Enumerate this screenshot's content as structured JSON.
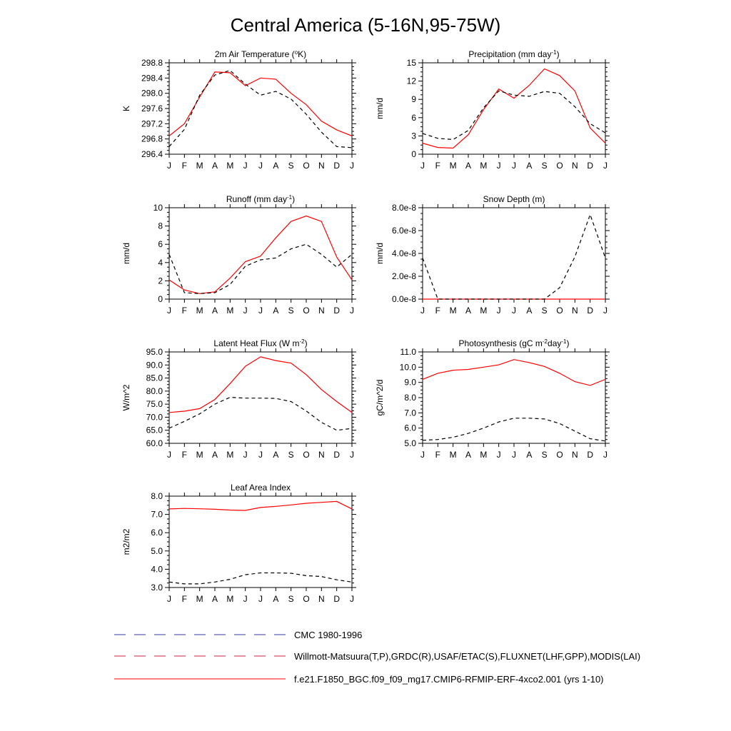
{
  "title": "Central America (5-16N,95-75W)",
  "months": [
    "J",
    "F",
    "M",
    "A",
    "M",
    "J",
    "J",
    "A",
    "S",
    "O",
    "N",
    "D",
    "J"
  ],
  "colors": {
    "model": "#ff0000",
    "obs": "#000000",
    "obs_alt": "#3a3aa8"
  },
  "legend": [
    {
      "style": "dashed",
      "color": "#3a3aa8",
      "label": "CMC 1980-1996"
    },
    {
      "style": "dashed",
      "color": "#cc2244",
      "label": "Willmott-Matsuura(T,P),GRDC(R),USAF/ETAC(S),FLUXNET(LHF,GPP),MODIS(LAI)"
    },
    {
      "style": "solid",
      "color": "#ff0000",
      "label": "f.e21.F1850_BGC.f09_f09_mg17.CMIP6-RFMIP-ERF-4xco2.001 (yrs 1-10)"
    }
  ],
  "chart_data": [
    {
      "type": "line",
      "title": "2m Air Temperature (°K)",
      "title_parts": [
        "2m Air Temperature (",
        "o",
        "K)"
      ],
      "ylabel": "K",
      "ylim": [
        296.4,
        298.8
      ],
      "yticks": [
        "296.4",
        "296.8",
        "297.2",
        "297.6",
        "298.0",
        "298.4",
        "298.8"
      ],
      "series": [
        {
          "style": "model",
          "values": [
            296.88,
            297.2,
            297.9,
            298.56,
            298.54,
            298.2,
            298.4,
            298.37,
            298.0,
            297.7,
            297.27,
            297.04,
            296.88
          ]
        },
        {
          "style": "obs",
          "values": [
            296.6,
            297.05,
            297.95,
            298.48,
            298.6,
            298.24,
            297.95,
            298.05,
            297.85,
            297.45,
            296.98,
            296.6,
            296.57
          ]
        }
      ]
    },
    {
      "type": "line",
      "title": "Precipitation (mm day-1)",
      "title_parts": [
        "Precipitation (mm day",
        "-1",
        ")"
      ],
      "ylabel": "mm/d",
      "ylim": [
        0,
        15
      ],
      "yticks": [
        "0",
        "3",
        "6",
        "9",
        "12",
        "15"
      ],
      "series": [
        {
          "style": "model",
          "values": [
            1.8,
            1.1,
            1.0,
            3.2,
            7.3,
            10.7,
            9.2,
            11.3,
            14.0,
            12.9,
            10.4,
            4.3,
            1.8
          ]
        },
        {
          "style": "obs",
          "values": [
            3.4,
            2.6,
            2.4,
            3.9,
            7.6,
            10.4,
            9.7,
            9.5,
            10.3,
            10.0,
            7.8,
            5.0,
            3.5
          ]
        }
      ]
    },
    {
      "type": "line",
      "title": "Runoff (mm day-1)",
      "title_parts": [
        "Runoff (mm day",
        "-1",
        ")"
      ],
      "ylabel": "mm/d",
      "ylim": [
        0,
        10
      ],
      "yticks": [
        "0",
        "2",
        "4",
        "6",
        "8",
        "10"
      ],
      "series": [
        {
          "style": "model",
          "values": [
            2.1,
            1.0,
            0.6,
            0.8,
            2.3,
            4.1,
            4.7,
            6.7,
            8.5,
            9.1,
            8.5,
            4.6,
            2.1
          ]
        },
        {
          "style": "obs",
          "values": [
            4.9,
            0.7,
            0.6,
            0.7,
            1.6,
            3.6,
            4.3,
            4.5,
            5.5,
            6.0,
            4.9,
            3.5,
            4.9
          ]
        }
      ]
    },
    {
      "type": "line",
      "title": "Snow Depth (m)",
      "title_parts": [
        "Snow Depth (m)"
      ],
      "ylabel": "mm/d",
      "ylim": [
        0,
        8e-08
      ],
      "yticks": [
        "0.0e-8",
        "2.0e-8",
        "4.0e-8",
        "6.0e-8",
        "8.0e-8"
      ],
      "series": [
        {
          "style": "model",
          "values": [
            0,
            0,
            0,
            0,
            0,
            0,
            0,
            0,
            0,
            0,
            0,
            0,
            0
          ]
        },
        {
          "style": "obs",
          "values": [
            3.6e-08,
            0,
            0,
            0,
            0,
            0,
            0,
            0,
            0,
            1e-08,
            3.7e-08,
            7.4e-08,
            3.6e-08
          ]
        }
      ]
    },
    {
      "type": "line",
      "title": "Latent Heat Flux (W m-2)",
      "title_parts": [
        "Latent Heat Flux (W m",
        "-2",
        ")"
      ],
      "ylabel": "W/m^2",
      "ylim": [
        60,
        95
      ],
      "yticks": [
        "60.0",
        "65.0",
        "70.0",
        "75.0",
        "80.0",
        "85.0",
        "90.0",
        "95.0"
      ],
      "series": [
        {
          "style": "model",
          "values": [
            71.8,
            72.3,
            73.3,
            76.8,
            82.9,
            89.5,
            93.1,
            91.7,
            90.7,
            86.3,
            80.6,
            76.0,
            71.8
          ]
        },
        {
          "style": "obs",
          "values": [
            65.8,
            68.4,
            71.3,
            75.0,
            77.6,
            77.3,
            77.3,
            77.2,
            76.0,
            72.4,
            68.0,
            65.0,
            65.7
          ]
        }
      ]
    },
    {
      "type": "line",
      "title": "Photosynthesis (gC m-2day-1)",
      "title_parts": [
        "Photosynthesis (gC m",
        "-2",
        "day",
        "-1",
        ")"
      ],
      "ylabel": "gC/m^2/d",
      "ylim": [
        5.0,
        11.0
      ],
      "yticks": [
        "5.0",
        "6.0",
        "7.0",
        "8.0",
        "9.0",
        "10.0",
        "11.0"
      ],
      "series": [
        {
          "style": "model",
          "values": [
            9.2,
            9.6,
            9.8,
            9.85,
            10.0,
            10.15,
            10.5,
            10.3,
            10.05,
            9.6,
            9.05,
            8.8,
            9.2
          ]
        },
        {
          "style": "obs",
          "values": [
            5.2,
            5.25,
            5.4,
            5.65,
            6.0,
            6.4,
            6.65,
            6.65,
            6.6,
            6.3,
            5.8,
            5.3,
            5.15
          ]
        }
      ]
    },
    {
      "type": "line",
      "title": "Leaf Area Index",
      "title_parts": [
        "Leaf Area Index"
      ],
      "ylabel": "m2/m2",
      "ylim": [
        3.0,
        8.0
      ],
      "yticks": [
        "3.0",
        "4.0",
        "5.0",
        "6.0",
        "7.0",
        "8.0"
      ],
      "series": [
        {
          "style": "model",
          "values": [
            7.3,
            7.33,
            7.31,
            7.28,
            7.24,
            7.22,
            7.38,
            7.44,
            7.52,
            7.61,
            7.66,
            7.71,
            7.3
          ]
        },
        {
          "style": "obs",
          "values": [
            3.3,
            3.2,
            3.2,
            3.3,
            3.45,
            3.7,
            3.8,
            3.8,
            3.78,
            3.65,
            3.6,
            3.42,
            3.3
          ]
        }
      ]
    }
  ]
}
